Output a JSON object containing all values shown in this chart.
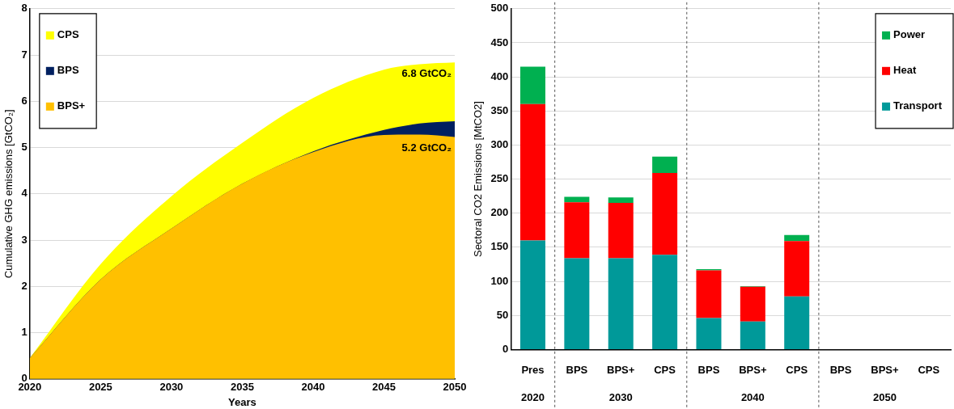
{
  "chart_data": [
    {
      "type": "area",
      "xlabel": "Years",
      "ylabel": "Cumulative GHG emissions [GtCO₂]",
      "x": [
        2020,
        2025,
        2030,
        2035,
        2040,
        2045,
        2047.5,
        2050
      ],
      "series": [
        {
          "name": "CPS",
          "color": "#ffff00",
          "values": [
            0.45,
            2.48,
            3.95,
            5.1,
            6.07,
            6.68,
            6.8,
            6.84
          ]
        },
        {
          "name": "BPS",
          "color": "#002060",
          "values": [
            0.45,
            2.15,
            3.25,
            4.22,
            4.92,
            5.38,
            5.52,
            5.57
          ]
        },
        {
          "name": "BPS+",
          "color": "#ffc000",
          "values": [
            0.45,
            2.15,
            3.25,
            4.22,
            4.9,
            5.27,
            5.28,
            5.23
          ]
        }
      ],
      "xlim": [
        2020,
        2050
      ],
      "xticks": [
        2020,
        2025,
        2030,
        2035,
        2040,
        2045,
        2050
      ],
      "ylim": [
        0,
        8
      ],
      "yticks": [
        0,
        1,
        2,
        3,
        4,
        5,
        6,
        7,
        8
      ],
      "grid": "y",
      "legend": "top left",
      "annotations": [
        {
          "text": "6.8 GtCO₂",
          "x": 2050,
          "y": 6.84
        },
        {
          "text": "5.2 GtCO₂",
          "x": 2050,
          "y": 5.23
        }
      ]
    },
    {
      "type": "bar",
      "stacked": true,
      "ylabel": "Sectoral CO2 Emissions [MtCO2]",
      "categories": [
        "Pres",
        "BPS",
        "BPS+",
        "CPS",
        "BPS",
        "BPS+",
        "CPS",
        "BPS",
        "BPS+",
        "CPS"
      ],
      "series": [
        {
          "name": "Transport",
          "color": "#009999",
          "values": [
            160,
            134,
            134,
            139,
            46,
            41,
            78,
            0,
            0,
            0
          ]
        },
        {
          "name": "Heat",
          "color": "#ff0000",
          "values": [
            200,
            82,
            81,
            120,
            70,
            51,
            81,
            0,
            0,
            0
          ]
        },
        {
          "name": "Power",
          "color": "#00b050",
          "values": [
            55,
            8,
            8,
            24,
            2,
            1,
            9,
            0,
            0,
            0
          ]
        }
      ],
      "ylim": [
        0,
        500
      ],
      "yticks": [
        0,
        50,
        100,
        150,
        200,
        250,
        300,
        350,
        400,
        450,
        500
      ],
      "grid": "y",
      "legend": "top right",
      "annotations": [
        "2020",
        "2030",
        "2040",
        "2050"
      ]
    }
  ]
}
